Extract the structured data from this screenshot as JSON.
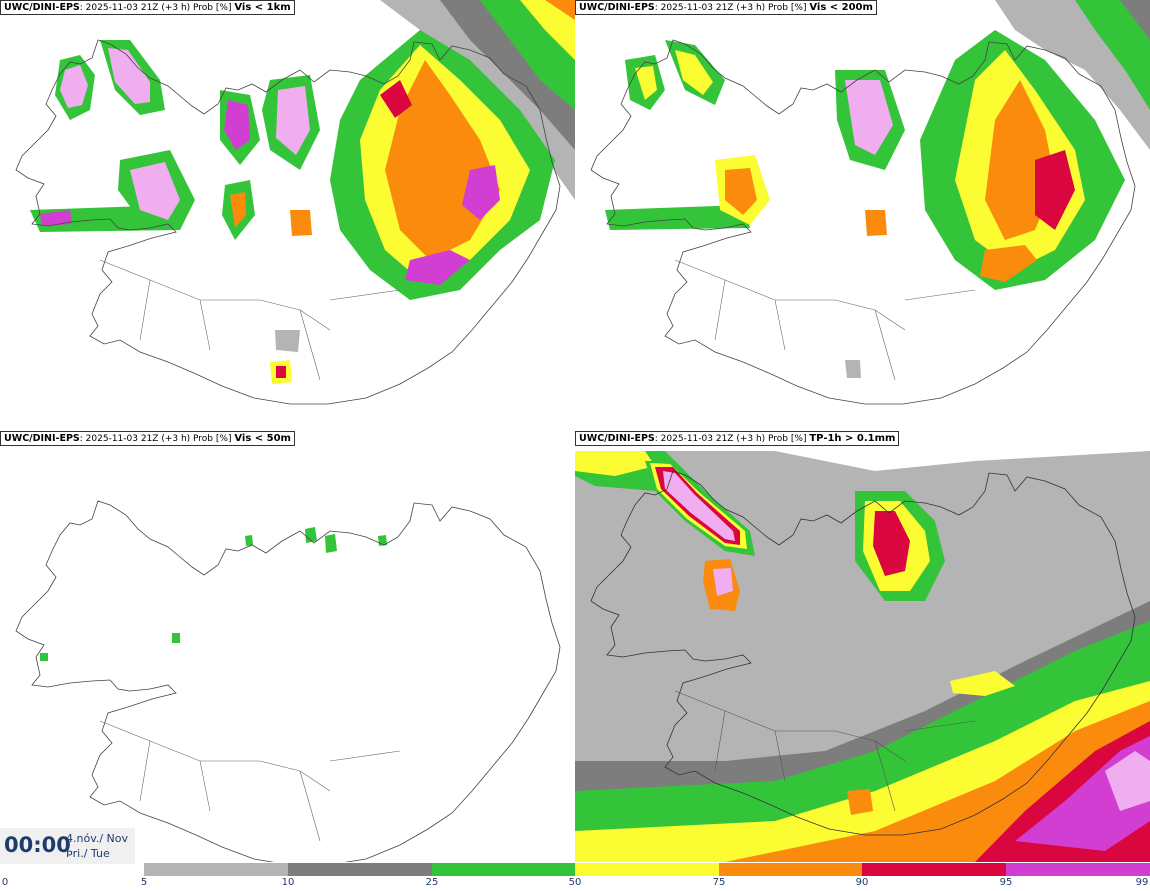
{
  "panels": [
    {
      "model": "UWC/DINI-EPS",
      "run": ": 2025-11-03 21Z (+3 h) Prob [%]",
      "var": "Vis < 1km"
    },
    {
      "model": "UWC/DINI-EPS",
      "run": ": 2025-11-03 21Z (+3 h) Prob [%]",
      "var": "Vis < 200m"
    },
    {
      "model": "UWC/DINI-EPS",
      "run": ": 2025-11-03 21Z (+3 h) Prob [%]",
      "var": "Vis < 50m"
    },
    {
      "model": "UWC/DINI-EPS",
      "run": ": 2025-11-03 21Z (+3 h) Prob [%]",
      "var": "TP-1h > 0.1mm"
    }
  ],
  "valid": {
    "time": "00:00",
    "date_line1": "4.nóv./ Nov",
    "date_line2": "Þri./ Tue"
  },
  "colorbar": {
    "ticks": [
      "0",
      "5",
      "10",
      "25",
      "50",
      "75",
      "90",
      "95",
      "99"
    ],
    "colors": [
      "#ffffff",
      "#b4b4b4",
      "#7d7d7d",
      "#34c43a",
      "#fcfc32",
      "#fb8b0d",
      "#d9063f",
      "#d23ed2",
      "#f0aef0"
    ]
  }
}
